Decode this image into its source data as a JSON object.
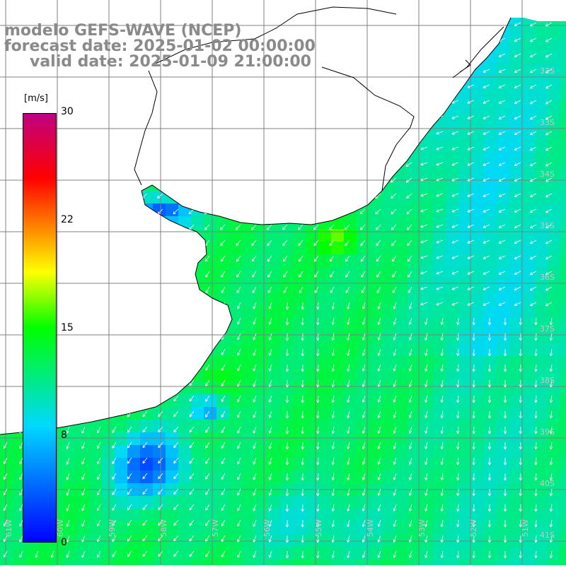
{
  "title": {
    "line1": "modelo GEFS-WAVE (NCEP)",
    "line2": "forecast date: 2025-01-02 00:00:00",
    "line3": "valid date: 2025-01-09 21:00:00"
  },
  "colorbar": {
    "unit": "[m/s]",
    "ticks": [
      "30",
      "22",
      "15",
      "8",
      "0"
    ],
    "tick_values": [
      30,
      22,
      15,
      8,
      0
    ],
    "range": [
      0,
      30
    ],
    "colors": [
      "#0000ff",
      "#00d8ff",
      "#00ff00",
      "#ffff00",
      "#ff0000",
      "#c00080"
    ]
  },
  "map": {
    "lat_labels": [
      "32S",
      "33S",
      "34S",
      "35S",
      "36S",
      "37S",
      "38S",
      "39S",
      "40S",
      "41S"
    ],
    "lon_labels": [
      "61W",
      "60W",
      "59W",
      "58W",
      "57W",
      "56W",
      "55W",
      "54W",
      "53W",
      "52W",
      "51W"
    ],
    "land_color": "#ffffff",
    "grid_color": "#808080",
    "coast_color": "#000000",
    "arrow_color": "#ffffff"
  }
}
